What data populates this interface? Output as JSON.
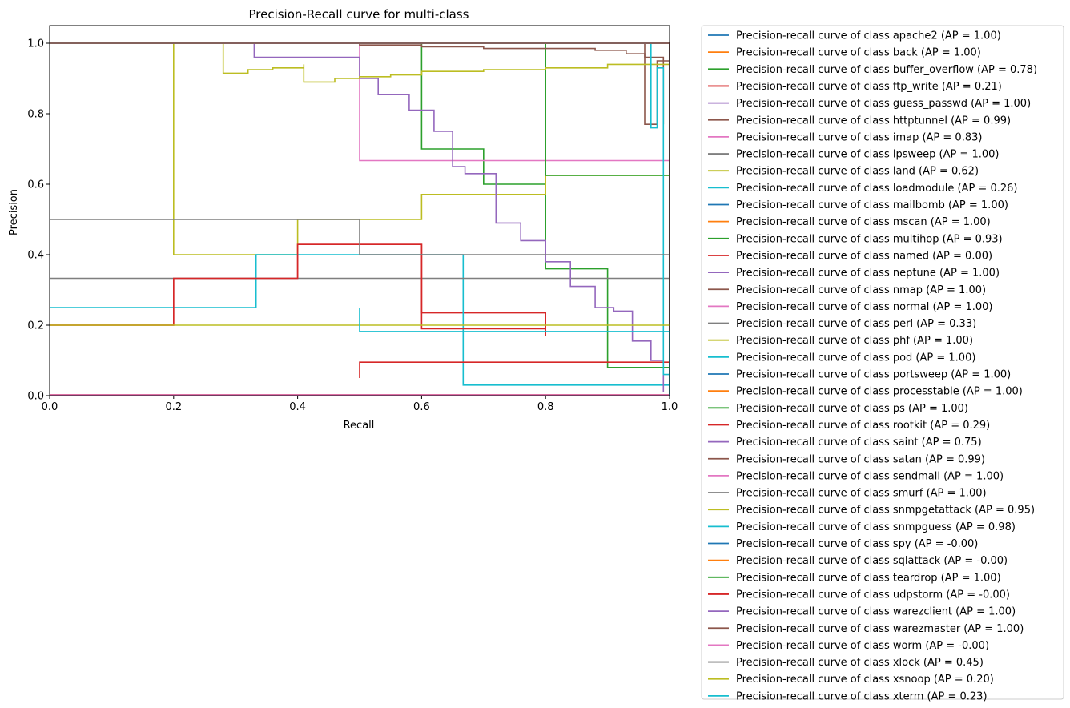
{
  "chart_data": {
    "type": "line",
    "title": "Precision-Recall curve for multi-class",
    "xlabel": "Recall",
    "ylabel": "Precision",
    "xlim": [
      0.0,
      1.0
    ],
    "ylim": [
      0.0,
      1.05
    ],
    "xticks": [
      "0.0",
      "0.2",
      "0.4",
      "0.6",
      "0.8",
      "1.0"
    ],
    "yticks": [
      "0.0",
      "0.2",
      "0.4",
      "0.6",
      "0.8",
      "1.0"
    ],
    "grid": false,
    "legend_position": "outside-right",
    "series": [
      {
        "name": "Precision-recall curve of class apache2 (AP = 1.00)",
        "color": "#1f77b4",
        "x": [
          0,
          1,
          1
        ],
        "y": [
          1,
          1,
          0
        ]
      },
      {
        "name": "Precision-recall curve of class back (AP = 1.00)",
        "color": "#ff7f0e",
        "x": [
          0,
          1,
          1
        ],
        "y": [
          1,
          1,
          0
        ]
      },
      {
        "name": "Precision-recall curve of class buffer_overflow (AP = 0.78)",
        "color": "#2ca02c",
        "x": [
          0,
          0.6,
          0.6,
          0.7,
          0.7,
          0.8,
          0.8,
          0.9,
          0.9,
          1.0,
          1.0
        ],
        "y": [
          1,
          1,
          0.7,
          0.7,
          0.6,
          0.6,
          0.36,
          0.36,
          0.08,
          0.08,
          0
        ]
      },
      {
        "name": "Precision-recall curve of class ftp_write (AP = 0.21)",
        "color": "#d62728",
        "x": [
          0,
          0.2,
          0.2,
          0.4,
          0.4,
          0.6,
          0.6,
          0.8,
          0.8
        ],
        "y": [
          0.2,
          0.2,
          0.333,
          0.333,
          0.429,
          0.429,
          0.235,
          0.235,
          0.17
        ]
      },
      {
        "name": "Precision-recall curve of class guess_passwd (AP = 1.00)",
        "color": "#9467bd",
        "x": [
          0,
          1,
          1
        ],
        "y": [
          1,
          1,
          0
        ]
      },
      {
        "name": "Precision-recall curve of class httptunnel (AP = 0.99)",
        "color": "#8c564b",
        "x": [
          0,
          0.96,
          0.96,
          0.98,
          0.98,
          1.0,
          1.0
        ],
        "y": [
          1,
          1,
          0.77,
          0.77,
          0.95,
          0.95,
          0.45
        ]
      },
      {
        "name": "Precision-recall curve of class imap (AP = 0.83)",
        "color": "#e377c2",
        "x": [
          0,
          0.5,
          0.5,
          1.0
        ],
        "y": [
          1,
          1,
          0.667,
          0.667
        ]
      },
      {
        "name": "Precision-recall curve of class ipsweep (AP = 1.00)",
        "color": "#7f7f7f",
        "x": [
          0,
          1,
          1
        ],
        "y": [
          1,
          1,
          0
        ]
      },
      {
        "name": "Precision-recall curve of class land (AP = 0.62)",
        "color": "#bcbd22",
        "x": [
          0,
          0.2,
          0.2,
          0.4,
          0.4,
          0.5,
          0.5,
          0.6,
          0.6,
          0.8,
          0.8,
          1.0
        ],
        "y": [
          1,
          1,
          0.4,
          0.4,
          0.5,
          0.5,
          0.5,
          0.5,
          0.571,
          0.571,
          0.625,
          0.625
        ]
      },
      {
        "name": "Precision-recall curve of class loadmodule (AP = 0.26)",
        "color": "#17becf",
        "x": [
          0,
          0.333,
          0.333,
          0.667,
          0.667,
          1.0
        ],
        "y": [
          0.25,
          0.25,
          0.4,
          0.4,
          0.03,
          0.03
        ]
      },
      {
        "name": "Precision-recall curve of class mailbomb (AP = 1.00)",
        "color": "#1f77b4",
        "x": [
          0,
          1,
          1
        ],
        "y": [
          1,
          1,
          0
        ]
      },
      {
        "name": "Precision-recall curve of class mscan (AP = 1.00)",
        "color": "#ff7f0e",
        "x": [
          0,
          1,
          1
        ],
        "y": [
          1,
          1,
          0
        ]
      },
      {
        "name": "Precision-recall curve of class multihop (AP = 0.93)",
        "color": "#2ca02c",
        "x": [
          0,
          0.8,
          0.8,
          1.0,
          1.0
        ],
        "y": [
          1,
          1,
          0.625,
          0.625,
          0
        ]
      },
      {
        "name": "Precision-recall curve of class named (AP = 0.00)",
        "color": "#d62728",
        "x": [
          0.5,
          0.5,
          1.0
        ],
        "y": [
          0.05,
          0.095,
          0.095
        ]
      },
      {
        "name": "Precision-recall curve of class neptune (AP = 1.00)",
        "color": "#9467bd",
        "x": [
          0,
          1,
          1
        ],
        "y": [
          1,
          1,
          0
        ]
      },
      {
        "name": "Precision-recall curve of class nmap (AP = 1.00)",
        "color": "#8c564b",
        "x": [
          0,
          1,
          1
        ],
        "y": [
          1,
          1,
          0
        ]
      },
      {
        "name": "Precision-recall curve of class normal (AP = 1.00)",
        "color": "#e377c2",
        "x": [
          0,
          1,
          1
        ],
        "y": [
          1,
          1,
          0
        ]
      },
      {
        "name": "Precision-recall curve of class perl (AP = 0.33)",
        "color": "#7f7f7f",
        "x": [
          0,
          1.0
        ],
        "y": [
          0.333,
          0.333
        ]
      },
      {
        "name": "Precision-recall curve of class phf (AP = 1.00)",
        "color": "#bcbd22",
        "x": [
          0,
          1,
          1
        ],
        "y": [
          1,
          1,
          0
        ]
      },
      {
        "name": "Precision-recall curve of class pod (AP = 1.00)",
        "color": "#17becf",
        "x": [
          0,
          1,
          1
        ],
        "y": [
          1,
          1,
          0
        ]
      },
      {
        "name": "Precision-recall curve of class portsweep (AP = 1.00)",
        "color": "#1f77b4",
        "x": [
          0,
          1,
          1
        ],
        "y": [
          1,
          1,
          0
        ]
      },
      {
        "name": "Precision-recall curve of class processtable (AP = 1.00)",
        "color": "#ff7f0e",
        "x": [
          0,
          1,
          1
        ],
        "y": [
          1,
          1,
          0
        ]
      },
      {
        "name": "Precision-recall curve of class ps (AP = 1.00)",
        "color": "#2ca02c",
        "x": [
          0,
          1,
          1
        ],
        "y": [
          1,
          1,
          0
        ]
      },
      {
        "name": "Precision-recall curve of class rootkit (AP = 0.29)",
        "color": "#d62728",
        "x": [
          0,
          0.2,
          0.2,
          0.4,
          0.4,
          0.6,
          0.6,
          0.8,
          0.8
        ],
        "y": [
          0.2,
          0.2,
          0.333,
          0.333,
          0.429,
          0.429,
          0.19,
          0.19,
          0.2
        ]
      },
      {
        "name": "Precision-recall curve of class saint (AP = 0.75)",
        "color": "#9467bd",
        "x": [
          0,
          0.33,
          0.33,
          0.5,
          0.5,
          0.53,
          0.53,
          0.58,
          0.58,
          0.62,
          0.62,
          0.65,
          0.65,
          0.67,
          0.67,
          0.72,
          0.72,
          0.76,
          0.76,
          0.8,
          0.8,
          0.84,
          0.84,
          0.88,
          0.88,
          0.91,
          0.91,
          0.94,
          0.94,
          0.97,
          0.97,
          0.99,
          0.99
        ],
        "y": [
          1,
          1,
          0.96,
          0.94,
          0.9,
          0.88,
          0.855,
          0.85,
          0.81,
          0.8,
          0.75,
          0.73,
          0.65,
          0.64,
          0.63,
          0.6,
          0.49,
          0.45,
          0.44,
          0.43,
          0.38,
          0.35,
          0.31,
          0.3,
          0.25,
          0.25,
          0.24,
          0.2,
          0.155,
          0.13,
          0.1,
          0.1,
          0.01
        ]
      },
      {
        "name": "Precision-recall curve of class satan (AP = 0.99)",
        "color": "#8c564b",
        "x": [
          0,
          0.33,
          0.5,
          0.6,
          0.7,
          0.8,
          0.88,
          0.93,
          0.96,
          0.99,
          0.99
        ],
        "y": [
          1,
          1,
          0.995,
          0.99,
          0.985,
          0.985,
          0.98,
          0.97,
          0.96,
          0.95,
          0.77
        ]
      },
      {
        "name": "Precision-recall curve of class sendmail (AP = 1.00)",
        "color": "#e377c2",
        "x": [
          0,
          1,
          1
        ],
        "y": [
          1,
          1,
          0
        ]
      },
      {
        "name": "Precision-recall curve of class smurf (AP = 1.00)",
        "color": "#7f7f7f",
        "x": [
          0,
          1,
          1
        ],
        "y": [
          1,
          1,
          0
        ]
      },
      {
        "name": "Precision-recall curve of class snmpgetattack (AP = 0.95)",
        "color": "#bcbd22",
        "x": [
          0,
          0.28,
          0.28,
          0.32,
          0.36,
          0.41,
          0.41,
          0.46,
          0.5,
          0.55,
          0.6,
          0.7,
          0.8,
          0.9,
          1.0,
          1.0
        ],
        "y": [
          1,
          1,
          0.915,
          0.925,
          0.93,
          0.94,
          0.89,
          0.9,
          0.905,
          0.91,
          0.92,
          0.925,
          0.93,
          0.94,
          0.95,
          0
        ]
      },
      {
        "name": "Precision-recall curve of class snmpguess (AP = 0.98)",
        "color": "#17becf",
        "x": [
          0,
          0.97,
          0.97,
          0.98,
          0.98,
          0.99,
          0.99,
          1.0,
          1.0
        ],
        "y": [
          1,
          1,
          0.76,
          0.76,
          0.93,
          0.93,
          0.06,
          0.06,
          0
        ]
      },
      {
        "name": "Precision-recall curve of class spy (AP = -0.00)",
        "color": "#1f77b4",
        "x": [
          0,
          1.0
        ],
        "y": [
          0.002,
          0.002
        ]
      },
      {
        "name": "Precision-recall curve of class sqlattack (AP = -0.00)",
        "color": "#ff7f0e",
        "x": [
          0,
          1.0
        ],
        "y": [
          0.002,
          0.002
        ]
      },
      {
        "name": "Precision-recall curve of class teardrop (AP = 1.00)",
        "color": "#2ca02c",
        "x": [
          0,
          1,
          1
        ],
        "y": [
          1,
          1,
          0
        ]
      },
      {
        "name": "Precision-recall curve of class udpstorm (AP = -0.00)",
        "color": "#d62728",
        "x": [
          0,
          1.0
        ],
        "y": [
          0.002,
          0.002
        ]
      },
      {
        "name": "Precision-recall curve of class warezclient (AP = 1.00)",
        "color": "#9467bd",
        "x": [
          0,
          1,
          1
        ],
        "y": [
          1,
          1,
          0
        ]
      },
      {
        "name": "Precision-recall curve of class warezmaster (AP = 1.00)",
        "color": "#8c564b",
        "x": [
          0,
          1,
          1
        ],
        "y": [
          1,
          1,
          0
        ]
      },
      {
        "name": "Precision-recall curve of class worm (AP = -0.00)",
        "color": "#e377c2",
        "x": [
          0,
          1.0
        ],
        "y": [
          0.002,
          0.002
        ]
      },
      {
        "name": "Precision-recall curve of class xlock (AP = 0.45)",
        "color": "#7f7f7f",
        "x": [
          0,
          0.5,
          0.5,
          1.0
        ],
        "y": [
          0.5,
          0.5,
          0.4,
          0.4
        ]
      },
      {
        "name": "Precision-recall curve of class xsnoop (AP = 0.20)",
        "color": "#bcbd22",
        "x": [
          0,
          1.0
        ],
        "y": [
          0.2,
          0.2
        ]
      },
      {
        "name": "Precision-recall curve of class xterm (AP = 0.23)",
        "color": "#17becf",
        "x": [
          0.5,
          0.5,
          1.0,
          1.0
        ],
        "y": [
          0.25,
          0.182,
          0.182,
          0.0
        ]
      }
    ]
  }
}
